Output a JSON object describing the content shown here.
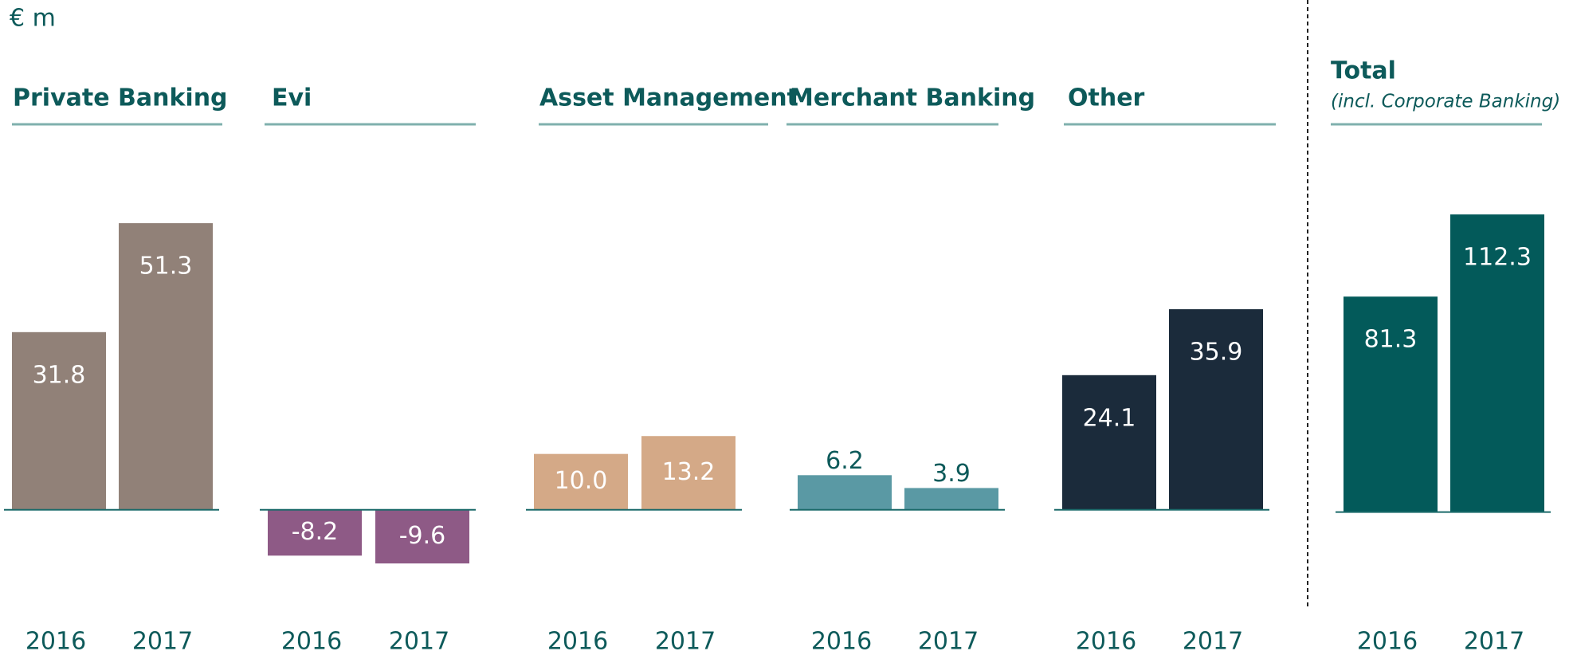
{
  "unit_label": "€ m",
  "chart_data": [
    {
      "type": "bar",
      "title": "Private Banking",
      "categories": [
        "2016",
        "2017"
      ],
      "values": [
        31.8,
        51.3
      ],
      "color": "#918178",
      "ylim": [
        -17,
        66
      ]
    },
    {
      "type": "bar",
      "title": "Evi",
      "categories": [
        "2016",
        "2017"
      ],
      "values": [
        -8.2,
        -9.6
      ],
      "color": "#8e5a86",
      "ylim": [
        -17,
        66
      ]
    },
    {
      "type": "bar",
      "title": "Asset Management",
      "categories": [
        "2016",
        "2017"
      ],
      "values": [
        10,
        13.2
      ],
      "value_labels": [
        "10.0",
        "13.2"
      ],
      "color": "#d4a987",
      "ylim": [
        -17,
        66
      ]
    },
    {
      "type": "bar",
      "title": "Merchant Banking",
      "categories": [
        "2016",
        "2017"
      ],
      "values": [
        6.2,
        3.9
      ],
      "color": "#5a99a4",
      "ylim": [
        -17,
        66
      ]
    },
    {
      "type": "bar",
      "title": "Other",
      "categories": [
        "2016",
        "2017"
      ],
      "values": [
        24.1,
        35.9
      ],
      "color": "#1b2b3b",
      "ylim": [
        -17,
        66
      ]
    },
    {
      "type": "bar",
      "title": "Total",
      "subtitle": "(incl. Corporate Banking)",
      "categories": [
        "2016",
        "2017"
      ],
      "values": [
        81.3,
        112.3
      ],
      "color": "#035a5a",
      "ylim": [
        -35,
        140
      ]
    }
  ]
}
